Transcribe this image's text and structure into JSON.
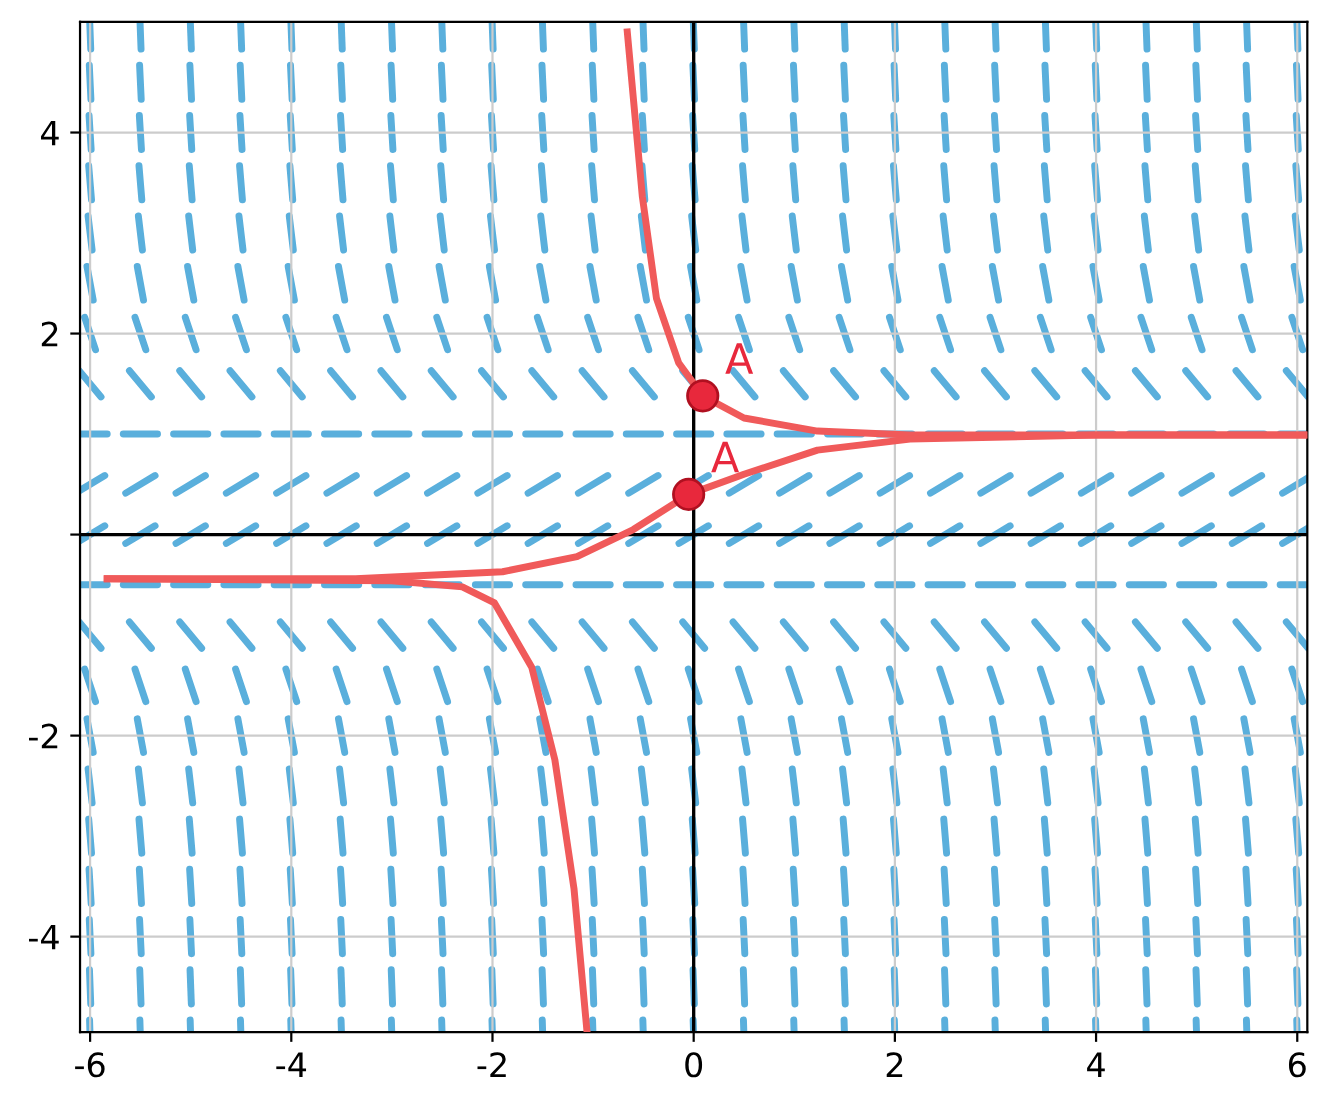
{
  "chart_data": {
    "type": "line",
    "xlim": [
      -6.1,
      6.1
    ],
    "ylim": [
      -4.95,
      5.1
    ],
    "xticks": [
      -6,
      -4,
      -2,
      0,
      2,
      4,
      6
    ],
    "yticks": [
      -4,
      -2,
      {
        "value": 0,
        "label": null
      },
      2,
      4
    ],
    "grid": true,
    "series": [
      {
        "color": "#f05a5a",
        "x": [
          -0.66,
          -0.51,
          -0.37,
          -0.15,
          0.09,
          0.5,
          1.23,
          2.15,
          4.0,
          6.1
        ],
        "values": [
          5.0,
          3.36,
          2.35,
          1.71,
          1.38,
          1.16,
          1.03,
          0.99,
          0.99,
          0.99
        ]
      },
      {
        "color": "#f05a5a",
        "x": [
          -5.83,
          -3.36,
          -1.9,
          -1.16,
          -0.6,
          -0.05,
          0.5,
          1.23,
          2.15,
          4.0,
          6.1
        ],
        "values": [
          -0.44,
          -0.44,
          -0.37,
          -0.22,
          0.05,
          0.4,
          0.6,
          0.84,
          0.95,
          0.99,
          0.99
        ]
      },
      {
        "color": "#f05a5a",
        "x": [
          -5.83,
          -3.0,
          -2.3,
          -1.98,
          -1.61,
          -1.38,
          -1.19,
          -1.06
        ],
        "values": [
          -0.44,
          -0.46,
          -0.52,
          -0.68,
          -1.32,
          -2.24,
          -3.52,
          -4.95
        ]
      },
      {
        "type": "scatter",
        "color": "#e8283c",
        "x": [
          0.09,
          -0.05
        ],
        "values": [
          1.38,
          0.4
        ]
      }
    ],
    "annotations": [
      {
        "text": "A",
        "x": 0.09,
        "y": 1.38
      },
      {
        "text": "A",
        "x": -0.05,
        "y": 0.4
      }
    ]
  }
}
